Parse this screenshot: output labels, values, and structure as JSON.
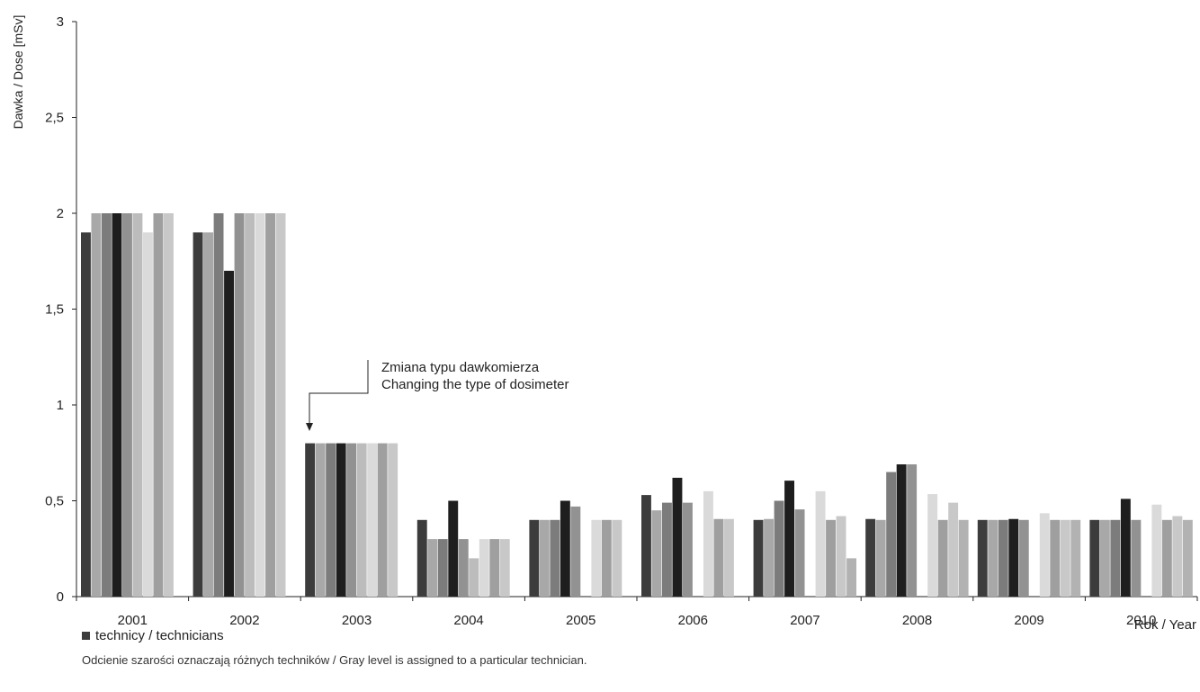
{
  "chart_data": {
    "type": "bar",
    "ylabel": "Dawka / Dose [mSv]",
    "xlabel": "Rok / Year",
    "ylim": [
      0,
      3
    ],
    "yticks": [
      0,
      0.5,
      1,
      1.5,
      2,
      2.5,
      3
    ],
    "ytick_labels": [
      "0",
      "0,5",
      "1",
      "1,5",
      "2",
      "2,5",
      "3"
    ],
    "grid": false,
    "categories": [
      "2001",
      "2002",
      "2003",
      "2004",
      "2005",
      "2006",
      "2007",
      "2008",
      "2009",
      "2010"
    ],
    "bar_colors": [
      "#3c3c3c",
      "#a8a8a9",
      "#7c7c7d",
      "#1e1e1e",
      "#929292",
      "#bcbcbd",
      "#dadada",
      "#9f9f9f",
      "#c8c8c8",
      "#b2b2b2"
    ],
    "series": [
      {
        "values": [
          1.9,
          1.9,
          0.8,
          0.4,
          0.4,
          0.53,
          0.4,
          0.405,
          0.4,
          0.4
        ]
      },
      {
        "values": [
          2.0,
          1.9,
          0.8,
          0.3,
          0.4,
          0.45,
          0.405,
          0.4,
          0.4,
          0.4
        ]
      },
      {
        "values": [
          2.0,
          2.0,
          0.8,
          0.3,
          0.4,
          0.49,
          0.5,
          0.65,
          0.4,
          0.4
        ]
      },
      {
        "values": [
          2.0,
          1.7,
          0.8,
          0.5,
          0.5,
          0.62,
          0.605,
          0.69,
          0.405,
          0.51
        ]
      },
      {
        "values": [
          2.0,
          2.0,
          0.8,
          0.3,
          0.47,
          0.49,
          0.455,
          0.69,
          0.4,
          0.4
        ]
      },
      {
        "values": [
          2.0,
          2.0,
          0.8,
          0.2,
          null,
          null,
          null,
          null,
          null,
          null
        ]
      },
      {
        "values": [
          1.9,
          2.0,
          0.8,
          0.3,
          0.4,
          0.55,
          0.55,
          0.535,
          0.435,
          0.48
        ]
      },
      {
        "values": [
          2.0,
          2.0,
          0.8,
          0.3,
          0.4,
          0.405,
          0.4,
          0.4,
          0.4,
          0.4
        ]
      },
      {
        "values": [
          2.0,
          2.0,
          0.8,
          0.3,
          0.4,
          0.405,
          0.42,
          0.49,
          0.4,
          0.42
        ]
      },
      {
        "values": [
          null,
          null,
          null,
          null,
          null,
          null,
          0.2,
          0.4,
          0.4,
          0.4
        ]
      }
    ],
    "annotation": {
      "line1": "Zmiana typu dawkomierza",
      "line2": "Changing the type of dosimeter"
    }
  },
  "legend": {
    "label": "technicy / technicians",
    "note": "Odcienie szarości oznaczają różnych techników / Gray level is assigned to a particular technician."
  }
}
